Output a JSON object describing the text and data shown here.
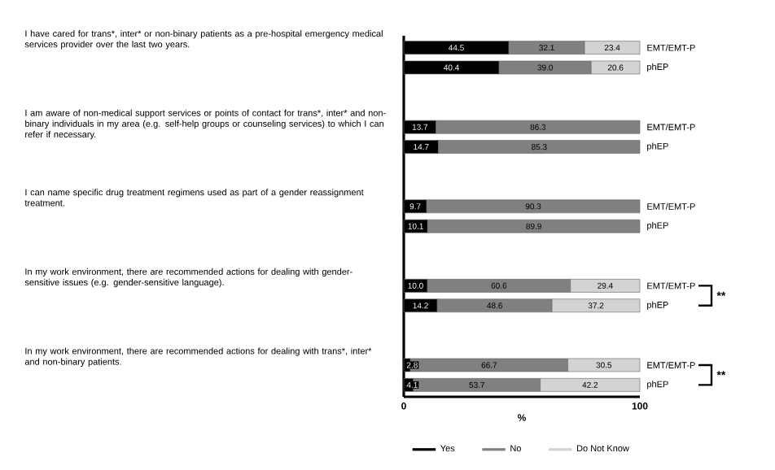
{
  "chart_data": {
    "type": "bar",
    "orientation": "horizontal",
    "stacked": true,
    "categories": [
      "EMT/EMT-P",
      "phEP",
      null,
      null,
      "EMT/EMT-P",
      "phEP",
      null,
      null,
      "EMT/EMT-P",
      "phEP",
      null,
      null,
      "EMT/EMT-P",
      "phEP",
      null,
      null,
      "EMT/EMT-P",
      "phEP"
    ],
    "series": [
      {
        "name": "Yes",
        "color": "#000000",
        "values": [
          44.5,
          40.4,
          null,
          null,
          13.7,
          14.7,
          null,
          null,
          9.7,
          10.1,
          null,
          null,
          10.0,
          14.2,
          null,
          null,
          2.8,
          4.1
        ],
        "value_labels": [
          "44.5",
          "40.4",
          null,
          null,
          "13.7",
          "14.7",
          null,
          null,
          "9.7",
          "10.1",
          null,
          null,
          "10.0",
          "14.2",
          null,
          null,
          "2.8",
          "4.1"
        ]
      },
      {
        "name": "No",
        "color": "#808080",
        "values": [
          32.1,
          39.0,
          null,
          null,
          86.3,
          85.3,
          null,
          null,
          90.3,
          89.9,
          null,
          null,
          60.6,
          48.6,
          null,
          null,
          66.7,
          53.7
        ],
        "value_labels": [
          "32.1",
          "39.0",
          null,
          null,
          "86.3",
          "85.3",
          null,
          null,
          "90.3",
          "89.9",
          null,
          null,
          "60.6",
          "48.6",
          null,
          null,
          "66.7",
          "53.7"
        ]
      },
      {
        "name": "Do Not Know",
        "color": "#d3d3d3",
        "values": [
          23.4,
          20.6,
          null,
          null,
          null,
          null,
          null,
          null,
          null,
          null,
          null,
          null,
          29.4,
          37.2,
          null,
          null,
          30.5,
          42.2
        ],
        "value_labels": [
          "23.4",
          "20.6",
          null,
          null,
          null,
          null,
          null,
          null,
          null,
          null,
          null,
          null,
          "29.4",
          "37.2",
          null,
          null,
          "30.5",
          "42.2"
        ]
      }
    ],
    "xlim": [
      0,
      100
    ],
    "xticks": [
      0,
      100
    ],
    "xlabel": "%",
    "legend": "bottom",
    "annotations": [
      "I have cared for trans*, inter* or non-binary patients as a pre-hospital emergency medical services provider over the last two years.",
      "I am aware of non-medical support services or points of contact for trans*, inter* and non-binary individuals in my area (e.g. self-help groups or counseling services) to which I can refer if necessary.",
      "I can name specific drug treatment regimens used as part of a gender reassignment treatment.",
      "In my work environment, there are recommended actions for dealing with gender-sensitive issues (e.g. gender-sensitive language).",
      "In my work environment, there are recommended actions for dealing with trans*, inter* and non-binary patients.",
      "**",
      "**"
    ]
  }
}
